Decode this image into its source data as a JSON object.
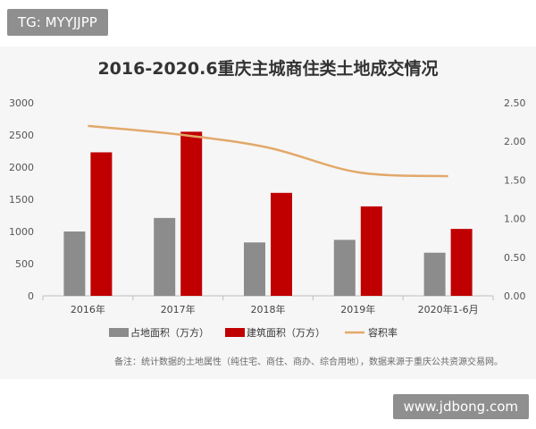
{
  "watermark_top": "TG: MYYJJPP",
  "watermark_bottom": "www.jdbong.com",
  "note": "备注：统计数据的土地属性（纯住宅、商住、商办、综合用地），数据来源于重庆公共资源交易网。",
  "colors": {
    "land_area": "#8c8c8c",
    "build_area": "#c00000",
    "plot_ratio": "#e2a96a",
    "background": "#f7f6f6"
  },
  "chart_data": {
    "type": "bar",
    "title": "2016-2020.6重庆主城商住类土地成交情况",
    "categories": [
      "2016年",
      "2017年",
      "2018年",
      "2019年",
      "2020年1-6月"
    ],
    "series": [
      {
        "name": "占地面积（万方）",
        "type": "bar",
        "axis": "left",
        "values": [
          1000,
          1210,
          830,
          870,
          670
        ]
      },
      {
        "name": "建筑面积（万方）",
        "type": "bar",
        "axis": "left",
        "values": [
          2230,
          2550,
          1600,
          1390,
          1040
        ]
      },
      {
        "name": "容积率",
        "type": "line",
        "axis": "right",
        "values": [
          2.2,
          2.09,
          1.92,
          1.6,
          1.55
        ]
      }
    ],
    "y_left": {
      "ylim": [
        0,
        3000
      ],
      "ticks": [
        "0",
        "500",
        "1000",
        "1500",
        "2000",
        "2500",
        "3000"
      ]
    },
    "y_right": {
      "ylim": [
        0,
        2.5
      ],
      "ticks": [
        "0.00",
        "0.50",
        "1.00",
        "1.50",
        "2.00",
        "2.50"
      ]
    },
    "grid": false,
    "legend_position": "bottom"
  }
}
